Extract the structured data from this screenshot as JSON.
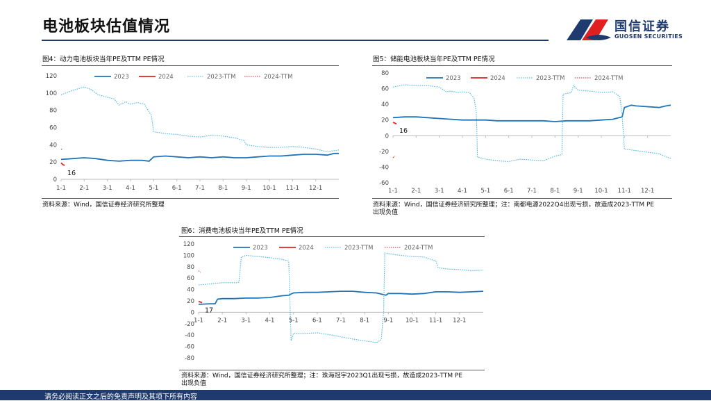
{
  "header": {
    "title": "电池板块估值情况",
    "logo_name": "国信证券",
    "logo_sub": "GUOSEN SECURITIES"
  },
  "footer": {
    "text": "请务必阅读正文之后的免责声明及其项下所有内容"
  },
  "colors": {
    "navy": "#1f3a6e",
    "blue": "#1f73b7",
    "red": "#e02020",
    "lightblue": "#3fb6e8"
  },
  "figures": [
    {
      "title": "图4：动力电池板块当年PE及TTM PE情况",
      "source": [
        "资料来源：Wind，国信证券经济研究所整理"
      ]
    },
    {
      "title": "图5：储能电池板块当年PE及TTM PE情况",
      "source": [
        "资料来源：Wind，国信证券经济研究所整理；注：南都电源2022Q4出现亏损，故造成2023-TTM PE",
        "出现负值"
      ]
    },
    {
      "title": "图6：消费电池板块当年PE及TTM PE情况",
      "source": [
        "资料来源：Wind，国信证券经济研究所整理；注：珠海冠宇2023Q1出现亏损，故造成2023-TTM PE",
        "出现负值"
      ]
    }
  ],
  "chart_data": [
    {
      "type": "line",
      "ylim": [
        0,
        120
      ],
      "yticks": [
        0,
        20,
        40,
        60,
        80,
        100,
        120
      ],
      "xticks": [
        "1-1",
        "2-1",
        "3-1",
        "4-1",
        "5-1",
        "6-1",
        "7-1",
        "8-1",
        "9-1",
        "10-1",
        "11-1",
        "12-1"
      ],
      "xlim": [
        1,
        13
      ],
      "annotation": "16",
      "series": [
        {
          "name": "2023",
          "style": "solid",
          "color": "#1f73b7",
          "points": [
            [
              1.0,
              23
            ],
            [
              1.5,
              24
            ],
            [
              2.0,
              25
            ],
            [
              2.5,
              24
            ],
            [
              3.0,
              22
            ],
            [
              3.5,
              21
            ],
            [
              4.0,
              22
            ],
            [
              4.5,
              22
            ],
            [
              4.8,
              21
            ],
            [
              5.0,
              26
            ],
            [
              5.5,
              27
            ],
            [
              6.0,
              26
            ],
            [
              6.5,
              25
            ],
            [
              7.0,
              26
            ],
            [
              7.5,
              25
            ],
            [
              8.0,
              26
            ],
            [
              8.5,
              25
            ],
            [
              9.0,
              25
            ],
            [
              9.5,
              26
            ],
            [
              10.0,
              27
            ],
            [
              10.5,
              27
            ],
            [
              11.0,
              28
            ],
            [
              11.5,
              29
            ],
            [
              12.0,
              29
            ],
            [
              12.5,
              28
            ],
            [
              12.8,
              30
            ],
            [
              13.0,
              30
            ]
          ]
        },
        {
          "name": "2024",
          "style": "solid",
          "color": "#e02020",
          "points": [
            [
              1.0,
              19
            ],
            [
              1.08,
              17
            ],
            [
              1.15,
              16
            ]
          ]
        },
        {
          "name": "2023-TTM",
          "style": "dotted",
          "color": "#3fb6e8",
          "points": [
            [
              1.0,
              98
            ],
            [
              1.5,
              103
            ],
            [
              2.0,
              107
            ],
            [
              2.3,
              104
            ],
            [
              2.6,
              98
            ],
            [
              3.0,
              95
            ],
            [
              3.3,
              93
            ],
            [
              3.5,
              86
            ],
            [
              3.8,
              90
            ],
            [
              4.0,
              87
            ],
            [
              4.3,
              89
            ],
            [
              4.6,
              87
            ],
            [
              4.9,
              74
            ],
            [
              5.0,
              55
            ],
            [
              5.5,
              53
            ],
            [
              6.0,
              52
            ],
            [
              6.5,
              50
            ],
            [
              7.0,
              49
            ],
            [
              7.5,
              51
            ],
            [
              8.0,
              50
            ],
            [
              8.5,
              48
            ],
            [
              8.9,
              45
            ],
            [
              9.0,
              40
            ],
            [
              9.5,
              38
            ],
            [
              10.0,
              37
            ],
            [
              10.5,
              37
            ],
            [
              11.0,
              38
            ],
            [
              11.5,
              37
            ],
            [
              12.0,
              35
            ],
            [
              12.5,
              32
            ],
            [
              13.0,
              34
            ]
          ]
        },
        {
          "name": "2024-TTM",
          "style": "dotted",
          "color": "#e02020",
          "points": [
            [
              1.0,
              35
            ],
            [
              1.08,
              34
            ]
          ]
        }
      ]
    },
    {
      "type": "line",
      "ylim": [
        -60,
        80
      ],
      "yticks": [
        -60,
        -40,
        -20,
        0,
        20,
        40,
        60,
        80
      ],
      "xticks": [
        "1-1",
        "2-1",
        "3-1",
        "4-1",
        "5-1",
        "6-1",
        "7-1",
        "8-1",
        "9-1",
        "10-1",
        "11-1",
        "12-1"
      ],
      "xlim": [
        1,
        13
      ],
      "annotation": "16",
      "series": [
        {
          "name": "2023",
          "style": "solid",
          "color": "#1f73b7",
          "points": [
            [
              1.0,
              23
            ],
            [
              1.5,
              24
            ],
            [
              2.0,
              24
            ],
            [
              2.5,
              23
            ],
            [
              3.0,
              22
            ],
            [
              3.5,
              21
            ],
            [
              4.0,
              20
            ],
            [
              4.5,
              20
            ],
            [
              5.0,
              20
            ],
            [
              5.5,
              19
            ],
            [
              6.0,
              19
            ],
            [
              6.5,
              19
            ],
            [
              7.0,
              19
            ],
            [
              7.5,
              19
            ],
            [
              8.0,
              18
            ],
            [
              8.5,
              19
            ],
            [
              9.0,
              19
            ],
            [
              9.5,
              19
            ],
            [
              10.0,
              20
            ],
            [
              10.5,
              21
            ],
            [
              10.9,
              24
            ],
            [
              11.0,
              36
            ],
            [
              11.3,
              39
            ],
            [
              11.5,
              38
            ],
            [
              12.0,
              37
            ],
            [
              12.5,
              36
            ],
            [
              12.8,
              38
            ],
            [
              13.0,
              39
            ]
          ]
        },
        {
          "name": "2024",
          "style": "solid",
          "color": "#e02020",
          "points": [
            [
              1.0,
              17
            ],
            [
              1.08,
              16
            ],
            [
              1.15,
              15
            ]
          ]
        },
        {
          "name": "2023-TTM",
          "style": "dotted",
          "color": "#3fb6e8",
          "points": [
            [
              1.0,
              62
            ],
            [
              1.5,
              65
            ],
            [
              2.0,
              64
            ],
            [
              2.5,
              64
            ],
            [
              3.0,
              62
            ],
            [
              3.3,
              56
            ],
            [
              3.5,
              57
            ],
            [
              3.8,
              55
            ],
            [
              4.0,
              56
            ],
            [
              4.3,
              55
            ],
            [
              4.5,
              48
            ],
            [
              4.6,
              30
            ],
            [
              4.65,
              -27
            ],
            [
              5.0,
              -30
            ],
            [
              5.5,
              -32
            ],
            [
              6.0,
              -33
            ],
            [
              6.5,
              -30
            ],
            [
              7.0,
              -31
            ],
            [
              7.5,
              -32
            ],
            [
              8.0,
              -26
            ],
            [
              8.3,
              -24
            ],
            [
              8.35,
              53
            ],
            [
              8.7,
              55
            ],
            [
              8.8,
              64
            ],
            [
              9.0,
              58
            ],
            [
              9.5,
              57
            ],
            [
              10.0,
              55
            ],
            [
              10.5,
              56
            ],
            [
              10.8,
              50
            ],
            [
              10.9,
              26
            ],
            [
              11.0,
              -17
            ],
            [
              11.5,
              -19
            ],
            [
              12.0,
              -21
            ],
            [
              12.5,
              -23
            ],
            [
              12.8,
              -27
            ],
            [
              13.0,
              -29
            ]
          ]
        },
        {
          "name": "2024-TTM",
          "style": "dotted",
          "color": "#e02020",
          "points": [
            [
              1.0,
              -28
            ],
            [
              1.08,
              -26
            ]
          ]
        }
      ]
    },
    {
      "type": "line",
      "ylim": [
        -80,
        120
      ],
      "yticks": [
        -80,
        -60,
        -40,
        -20,
        0,
        20,
        40,
        60,
        80,
        100,
        120
      ],
      "xticks": [
        "1-1",
        "2-1",
        "3-1",
        "4-1",
        "5-1",
        "6-1",
        "7-1",
        "8-1",
        "9-1",
        "10-1",
        "11-1",
        "12-1"
      ],
      "xlim": [
        1,
        13
      ],
      "annotation": "17",
      "series": [
        {
          "name": "2023",
          "style": "solid",
          "color": "#1f73b7",
          "points": [
            [
              1.0,
              14
            ],
            [
              1.5,
              15
            ],
            [
              1.7,
              15
            ],
            [
              1.8,
              23
            ],
            [
              2.0,
              24
            ],
            [
              2.5,
              24
            ],
            [
              3.0,
              25
            ],
            [
              3.5,
              25
            ],
            [
              4.0,
              26
            ],
            [
              4.5,
              29
            ],
            [
              4.8,
              30
            ],
            [
              5.0,
              34
            ],
            [
              5.5,
              35
            ],
            [
              6.0,
              35
            ],
            [
              6.5,
              36
            ],
            [
              7.0,
              37
            ],
            [
              7.5,
              37
            ],
            [
              8.0,
              35
            ],
            [
              8.5,
              34
            ],
            [
              8.9,
              30
            ],
            [
              9.0,
              33
            ],
            [
              9.5,
              33
            ],
            [
              10.0,
              32
            ],
            [
              10.5,
              33
            ],
            [
              11.0,
              36
            ],
            [
              11.5,
              36
            ],
            [
              12.0,
              35
            ],
            [
              12.5,
              36
            ],
            [
              13.0,
              37
            ]
          ]
        },
        {
          "name": "2024",
          "style": "solid",
          "color": "#e02020",
          "points": [
            [
              1.0,
              19
            ],
            [
              1.08,
              18
            ],
            [
              1.15,
              17
            ]
          ]
        },
        {
          "name": "2023-TTM",
          "style": "dotted",
          "color": "#3fb6e8",
          "points": [
            [
              1.0,
              48
            ],
            [
              1.5,
              50
            ],
            [
              2.0,
              52
            ],
            [
              2.6,
              52
            ],
            [
              2.7,
              53
            ],
            [
              2.8,
              97
            ],
            [
              3.0,
              100
            ],
            [
              3.5,
              98
            ],
            [
              4.0,
              96
            ],
            [
              4.5,
              93
            ],
            [
              4.8,
              90
            ],
            [
              4.9,
              -50
            ],
            [
              5.0,
              -37
            ],
            [
              5.5,
              -37
            ],
            [
              6.0,
              -36
            ],
            [
              6.5,
              -39
            ],
            [
              7.0,
              -43
            ],
            [
              7.5,
              -47
            ],
            [
              8.0,
              -50
            ],
            [
              8.5,
              -53
            ],
            [
              8.7,
              -48
            ],
            [
              8.8,
              0
            ],
            [
              8.85,
              104
            ],
            [
              9.0,
              103
            ],
            [
              9.5,
              100
            ],
            [
              10.0,
              98
            ],
            [
              10.5,
              97
            ],
            [
              11.0,
              90
            ],
            [
              11.1,
              78
            ],
            [
              11.5,
              76
            ],
            [
              12.0,
              75
            ],
            [
              12.5,
              73
            ],
            [
              13.0,
              74
            ]
          ]
        },
        {
          "name": "2024-TTM",
          "style": "dotted",
          "color": "#e02020",
          "points": [
            [
              1.0,
              73
            ],
            [
              1.08,
              70
            ]
          ]
        }
      ]
    }
  ]
}
